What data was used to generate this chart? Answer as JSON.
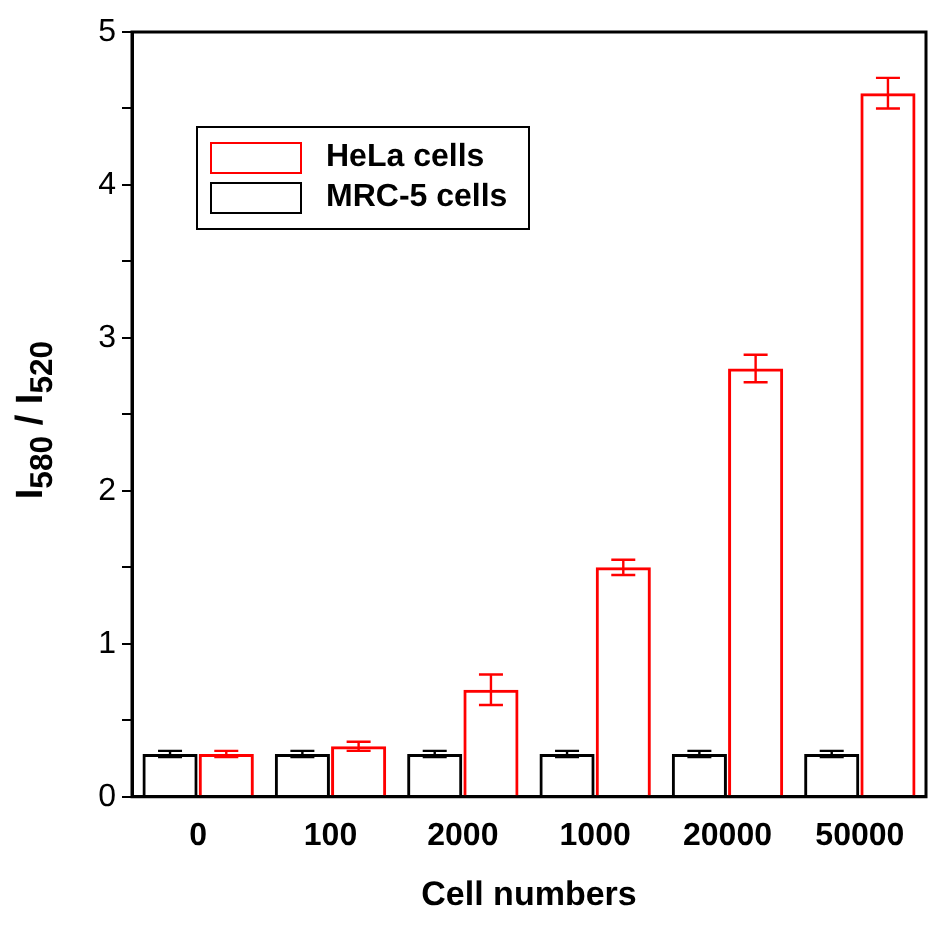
{
  "chart_data": {
    "type": "bar",
    "xlabel": "Cell numbers",
    "ylabel": "I$_{580}$ / I$_{520}$",
    "categories": [
      "0",
      "100",
      "2000",
      "1000",
      "20000",
      "50000"
    ],
    "series": [
      {
        "name": "MRC-5 cells",
        "color": "#000000",
        "values": [
          0.28,
          0.28,
          0.28,
          0.28,
          0.28,
          0.28
        ],
        "errors": [
          0.02,
          0.02,
          0.02,
          0.02,
          0.02,
          0.02
        ]
      },
      {
        "name": "HeLa cells",
        "color": "#ff0000",
        "values": [
          0.28,
          0.33,
          0.7,
          1.5,
          2.8,
          4.6
        ],
        "errors": [
          0.02,
          0.03,
          0.1,
          0.05,
          0.09,
          0.1
        ]
      }
    ],
    "ylim": [
      0,
      5
    ],
    "yticks": [
      0,
      {
        "value": 0.5,
        "label": null
      },
      1,
      {
        "value": 1.5,
        "label": null
      },
      2,
      {
        "value": 2.5,
        "label": null
      },
      3,
      {
        "value": 3.5,
        "label": null
      },
      4,
      {
        "value": 4.5,
        "label": null
      },
      5
    ],
    "grid": false,
    "legend": "top left"
  }
}
